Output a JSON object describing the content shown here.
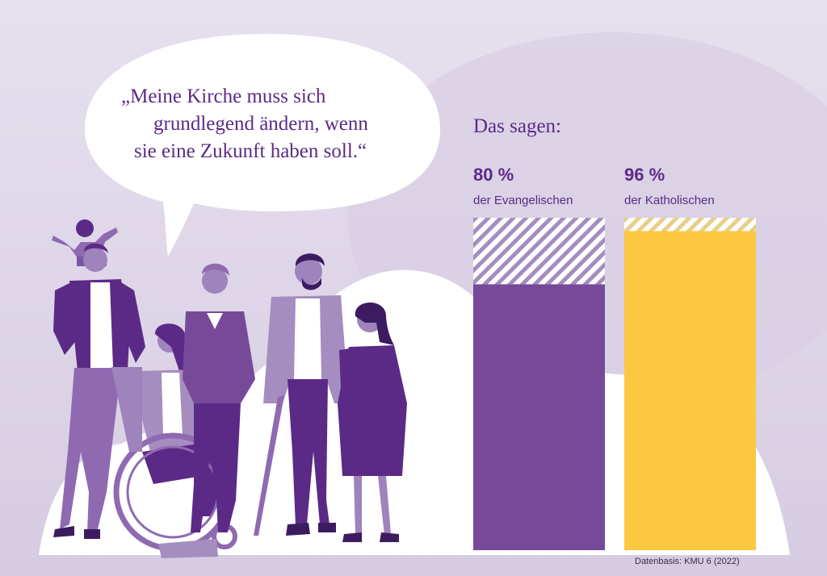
{
  "quote": {
    "line1": "„Meine Kirche muss sich",
    "line2": "grundlegend ändern, wenn",
    "line3": "sie eine Zukunft haben soll.“"
  },
  "intro": "Das sagen:",
  "chart_data": {
    "type": "bar",
    "title": "Das sagen:",
    "categories": [
      "der Evangelischen",
      "der Katholischen"
    ],
    "values": [
      80,
      96
    ],
    "value_labels": [
      "80 %",
      "96 %"
    ],
    "ylim": [
      0,
      100
    ],
    "colors": [
      "#774999",
      "#fbc840"
    ],
    "remainder_pattern": "diagonal-stripes",
    "grid": false,
    "legend": "none"
  },
  "source": "Datenbasis: KMU 6 (2022)",
  "illustration": "group of diverse people (family with child on shoulders, woman in wheelchair, men, man with cane, woman)"
}
